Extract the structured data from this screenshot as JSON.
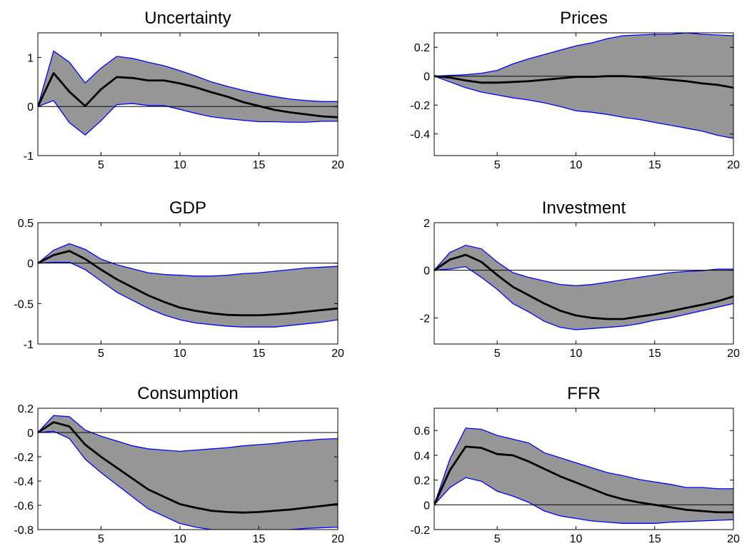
{
  "chart_data": [
    {
      "type": "area",
      "title": "Uncertainty",
      "x": [
        1,
        2,
        3,
        4,
        5,
        6,
        7,
        8,
        9,
        10,
        11,
        12,
        13,
        14,
        15,
        16,
        17,
        18,
        19,
        20
      ],
      "xlim": [
        1,
        20
      ],
      "ylim": [
        -1,
        1.5
      ],
      "xticks": [
        5,
        10,
        15,
        20
      ],
      "yticks": [
        -1,
        0,
        1
      ],
      "ytick_labels": [
        "-1",
        "0",
        "1"
      ],
      "series": [
        {
          "role": "median",
          "values": [
            0,
            0.68,
            0.3,
            0.01,
            0.35,
            0.6,
            0.58,
            0.53,
            0.53,
            0.47,
            0.39,
            0.29,
            0.2,
            0.09,
            0.01,
            -0.07,
            -0.12,
            -0.16,
            -0.2,
            -0.22
          ]
        },
        {
          "role": "upper",
          "values": [
            0,
            1.13,
            0.9,
            0.48,
            0.78,
            1.02,
            0.98,
            0.9,
            0.83,
            0.73,
            0.62,
            0.5,
            0.41,
            0.33,
            0.26,
            0.2,
            0.15,
            0.12,
            0.1,
            0.1
          ]
        },
        {
          "role": "lower",
          "values": [
            0,
            0.12,
            -0.33,
            -0.58,
            -0.29,
            0.04,
            0.06,
            0.02,
            0.02,
            -0.06,
            -0.14,
            -0.21,
            -0.25,
            -0.28,
            -0.31,
            -0.31,
            -0.32,
            -0.32,
            -0.3,
            -0.3
          ]
        }
      ]
    },
    {
      "type": "area",
      "title": "Prices",
      "x": [
        1,
        2,
        3,
        4,
        5,
        6,
        7,
        8,
        9,
        10,
        11,
        12,
        13,
        14,
        15,
        16,
        17,
        18,
        19,
        20
      ],
      "xlim": [
        1,
        20
      ],
      "ylim": [
        -0.55,
        0.3
      ],
      "xticks": [
        5,
        10,
        15,
        20
      ],
      "yticks": [
        -0.4,
        -0.2,
        0,
        0.2
      ],
      "ytick_labels": [
        "-0.4",
        "-0.2",
        "0",
        "0.2"
      ],
      "series": [
        {
          "role": "median",
          "values": [
            0,
            -0.01,
            -0.03,
            -0.045,
            -0.045,
            -0.04,
            -0.035,
            -0.025,
            -0.015,
            -0.005,
            -0.005,
            0,
            0,
            -0.005,
            -0.015,
            -0.025,
            -0.035,
            -0.05,
            -0.06,
            -0.08
          ]
        },
        {
          "role": "upper",
          "values": [
            0,
            0.005,
            0.01,
            0.02,
            0.04,
            0.085,
            0.12,
            0.15,
            0.18,
            0.21,
            0.23,
            0.26,
            0.28,
            0.285,
            0.29,
            0.29,
            0.3,
            0.29,
            0.285,
            0.28
          ]
        },
        {
          "role": "lower",
          "values": [
            0,
            -0.04,
            -0.08,
            -0.11,
            -0.13,
            -0.15,
            -0.165,
            -0.185,
            -0.21,
            -0.24,
            -0.25,
            -0.265,
            -0.285,
            -0.3,
            -0.32,
            -0.34,
            -0.36,
            -0.38,
            -0.41,
            -0.43
          ]
        }
      ]
    },
    {
      "type": "area",
      "title": "GDP",
      "x": [
        1,
        2,
        3,
        4,
        5,
        6,
        7,
        8,
        9,
        10,
        11,
        12,
        13,
        14,
        15,
        16,
        17,
        18,
        19,
        20
      ],
      "xlim": [
        1,
        20
      ],
      "ylim": [
        -1,
        0.5
      ],
      "xticks": [
        5,
        10,
        15,
        20
      ],
      "yticks": [
        -1,
        -0.5,
        0,
        0.5
      ],
      "ytick_labels": [
        "-1",
        "-0.5",
        "0",
        "0.5"
      ],
      "series": [
        {
          "role": "median",
          "values": [
            0,
            0.1,
            0.15,
            0.05,
            -0.08,
            -0.2,
            -0.3,
            -0.4,
            -0.48,
            -0.55,
            -0.59,
            -0.62,
            -0.64,
            -0.645,
            -0.645,
            -0.635,
            -0.62,
            -0.6,
            -0.58,
            -0.56
          ]
        },
        {
          "role": "upper",
          "values": [
            0,
            0.16,
            0.24,
            0.17,
            0.05,
            -0.02,
            -0.07,
            -0.12,
            -0.14,
            -0.15,
            -0.16,
            -0.16,
            -0.15,
            -0.13,
            -0.12,
            -0.1,
            -0.08,
            -0.06,
            -0.05,
            -0.04
          ]
        },
        {
          "role": "lower",
          "values": [
            0,
            0.01,
            0.01,
            -0.08,
            -0.22,
            -0.36,
            -0.46,
            -0.56,
            -0.64,
            -0.7,
            -0.74,
            -0.76,
            -0.78,
            -0.79,
            -0.79,
            -0.79,
            -0.77,
            -0.75,
            -0.73,
            -0.7
          ]
        }
      ]
    },
    {
      "type": "area",
      "title": "Investment",
      "x": [
        1,
        2,
        3,
        4,
        5,
        6,
        7,
        8,
        9,
        10,
        11,
        12,
        13,
        14,
        15,
        16,
        17,
        18,
        19,
        20
      ],
      "xlim": [
        1,
        20
      ],
      "ylim": [
        -3.1,
        2
      ],
      "xticks": [
        5,
        10,
        15,
        20
      ],
      "yticks": [
        -2,
        0,
        2
      ],
      "ytick_labels": [
        "-2",
        "0",
        "2"
      ],
      "series": [
        {
          "role": "median",
          "values": [
            0,
            0.45,
            0.65,
            0.35,
            -0.2,
            -0.7,
            -1.05,
            -1.4,
            -1.7,
            -1.9,
            -2.0,
            -2.05,
            -2.05,
            -1.95,
            -1.85,
            -1.72,
            -1.58,
            -1.45,
            -1.3,
            -1.1
          ]
        },
        {
          "role": "upper",
          "values": [
            0,
            0.75,
            1.05,
            0.9,
            0.35,
            -0.1,
            -0.3,
            -0.45,
            -0.6,
            -0.65,
            -0.6,
            -0.5,
            -0.4,
            -0.3,
            -0.2,
            -0.1,
            -0.05,
            -0.02,
            0.05,
            0.05
          ]
        },
        {
          "role": "lower",
          "values": [
            0,
            0.05,
            0.15,
            -0.3,
            -0.8,
            -1.4,
            -1.75,
            -2.15,
            -2.4,
            -2.5,
            -2.45,
            -2.4,
            -2.35,
            -2.25,
            -2.1,
            -2.0,
            -1.85,
            -1.7,
            -1.55,
            -1.4
          ]
        }
      ]
    },
    {
      "type": "area",
      "title": "Consumption",
      "x": [
        1,
        2,
        3,
        4,
        5,
        6,
        7,
        8,
        9,
        10,
        11,
        12,
        13,
        14,
        15,
        16,
        17,
        18,
        19,
        20
      ],
      "xlim": [
        1,
        20
      ],
      "ylim": [
        -0.8,
        0.2
      ],
      "xticks": [
        5,
        10,
        15,
        20
      ],
      "yticks": [
        -0.8,
        -0.6,
        -0.4,
        -0.2,
        0,
        0.2
      ],
      "ytick_labels": [
        "-0.8",
        "-0.6",
        "-0.4",
        "-0.2",
        "0",
        "0.2"
      ],
      "series": [
        {
          "role": "median",
          "values": [
            0,
            0.085,
            0.05,
            -0.1,
            -0.2,
            -0.29,
            -0.38,
            -0.47,
            -0.53,
            -0.59,
            -0.62,
            -0.645,
            -0.655,
            -0.66,
            -0.655,
            -0.645,
            -0.635,
            -0.62,
            -0.605,
            -0.59
          ]
        },
        {
          "role": "upper",
          "values": [
            0,
            0.14,
            0.13,
            0.02,
            -0.03,
            -0.07,
            -0.11,
            -0.135,
            -0.145,
            -0.155,
            -0.145,
            -0.135,
            -0.125,
            -0.11,
            -0.1,
            -0.09,
            -0.075,
            -0.065,
            -0.055,
            -0.05
          ]
        },
        {
          "role": "lower",
          "values": [
            0,
            0.01,
            -0.05,
            -0.22,
            -0.33,
            -0.43,
            -0.53,
            -0.63,
            -0.69,
            -0.75,
            -0.78,
            -0.8,
            -0.805,
            -0.81,
            -0.81,
            -0.81,
            -0.8,
            -0.79,
            -0.785,
            -0.78
          ]
        }
      ]
    },
    {
      "type": "area",
      "title": "FFR",
      "x": [
        1,
        2,
        3,
        4,
        5,
        6,
        7,
        8,
        9,
        10,
        11,
        12,
        13,
        14,
        15,
        16,
        17,
        18,
        19,
        20
      ],
      "xlim": [
        1,
        20
      ],
      "ylim": [
        -0.2,
        0.78
      ],
      "xticks": [
        5,
        10,
        15,
        20
      ],
      "yticks": [
        -0.2,
        0,
        0.2,
        0.4,
        0.6
      ],
      "ytick_labels": [
        "-0.2",
        "0",
        "0.2",
        "0.4",
        "0.6"
      ],
      "series": [
        {
          "role": "median",
          "values": [
            0,
            0.28,
            0.47,
            0.46,
            0.41,
            0.4,
            0.35,
            0.29,
            0.23,
            0.18,
            0.13,
            0.08,
            0.045,
            0.02,
            0,
            -0.02,
            -0.04,
            -0.05,
            -0.06,
            -0.06
          ]
        },
        {
          "role": "upper",
          "values": [
            0,
            0.37,
            0.62,
            0.61,
            0.56,
            0.53,
            0.5,
            0.42,
            0.38,
            0.34,
            0.3,
            0.26,
            0.235,
            0.205,
            0.185,
            0.165,
            0.14,
            0.14,
            0.13,
            0.13
          ]
        },
        {
          "role": "lower",
          "values": [
            0,
            0.14,
            0.22,
            0.19,
            0.11,
            0.07,
            0.02,
            -0.05,
            -0.09,
            -0.11,
            -0.13,
            -0.14,
            -0.15,
            -0.15,
            -0.15,
            -0.14,
            -0.135,
            -0.13,
            -0.125,
            -0.12
          ]
        }
      ]
    }
  ],
  "colors": {
    "band_fill": "#969696",
    "band_edge": "#0000ff",
    "median_line": "#000000",
    "zero_line": "#000000",
    "axes": "#000000"
  }
}
